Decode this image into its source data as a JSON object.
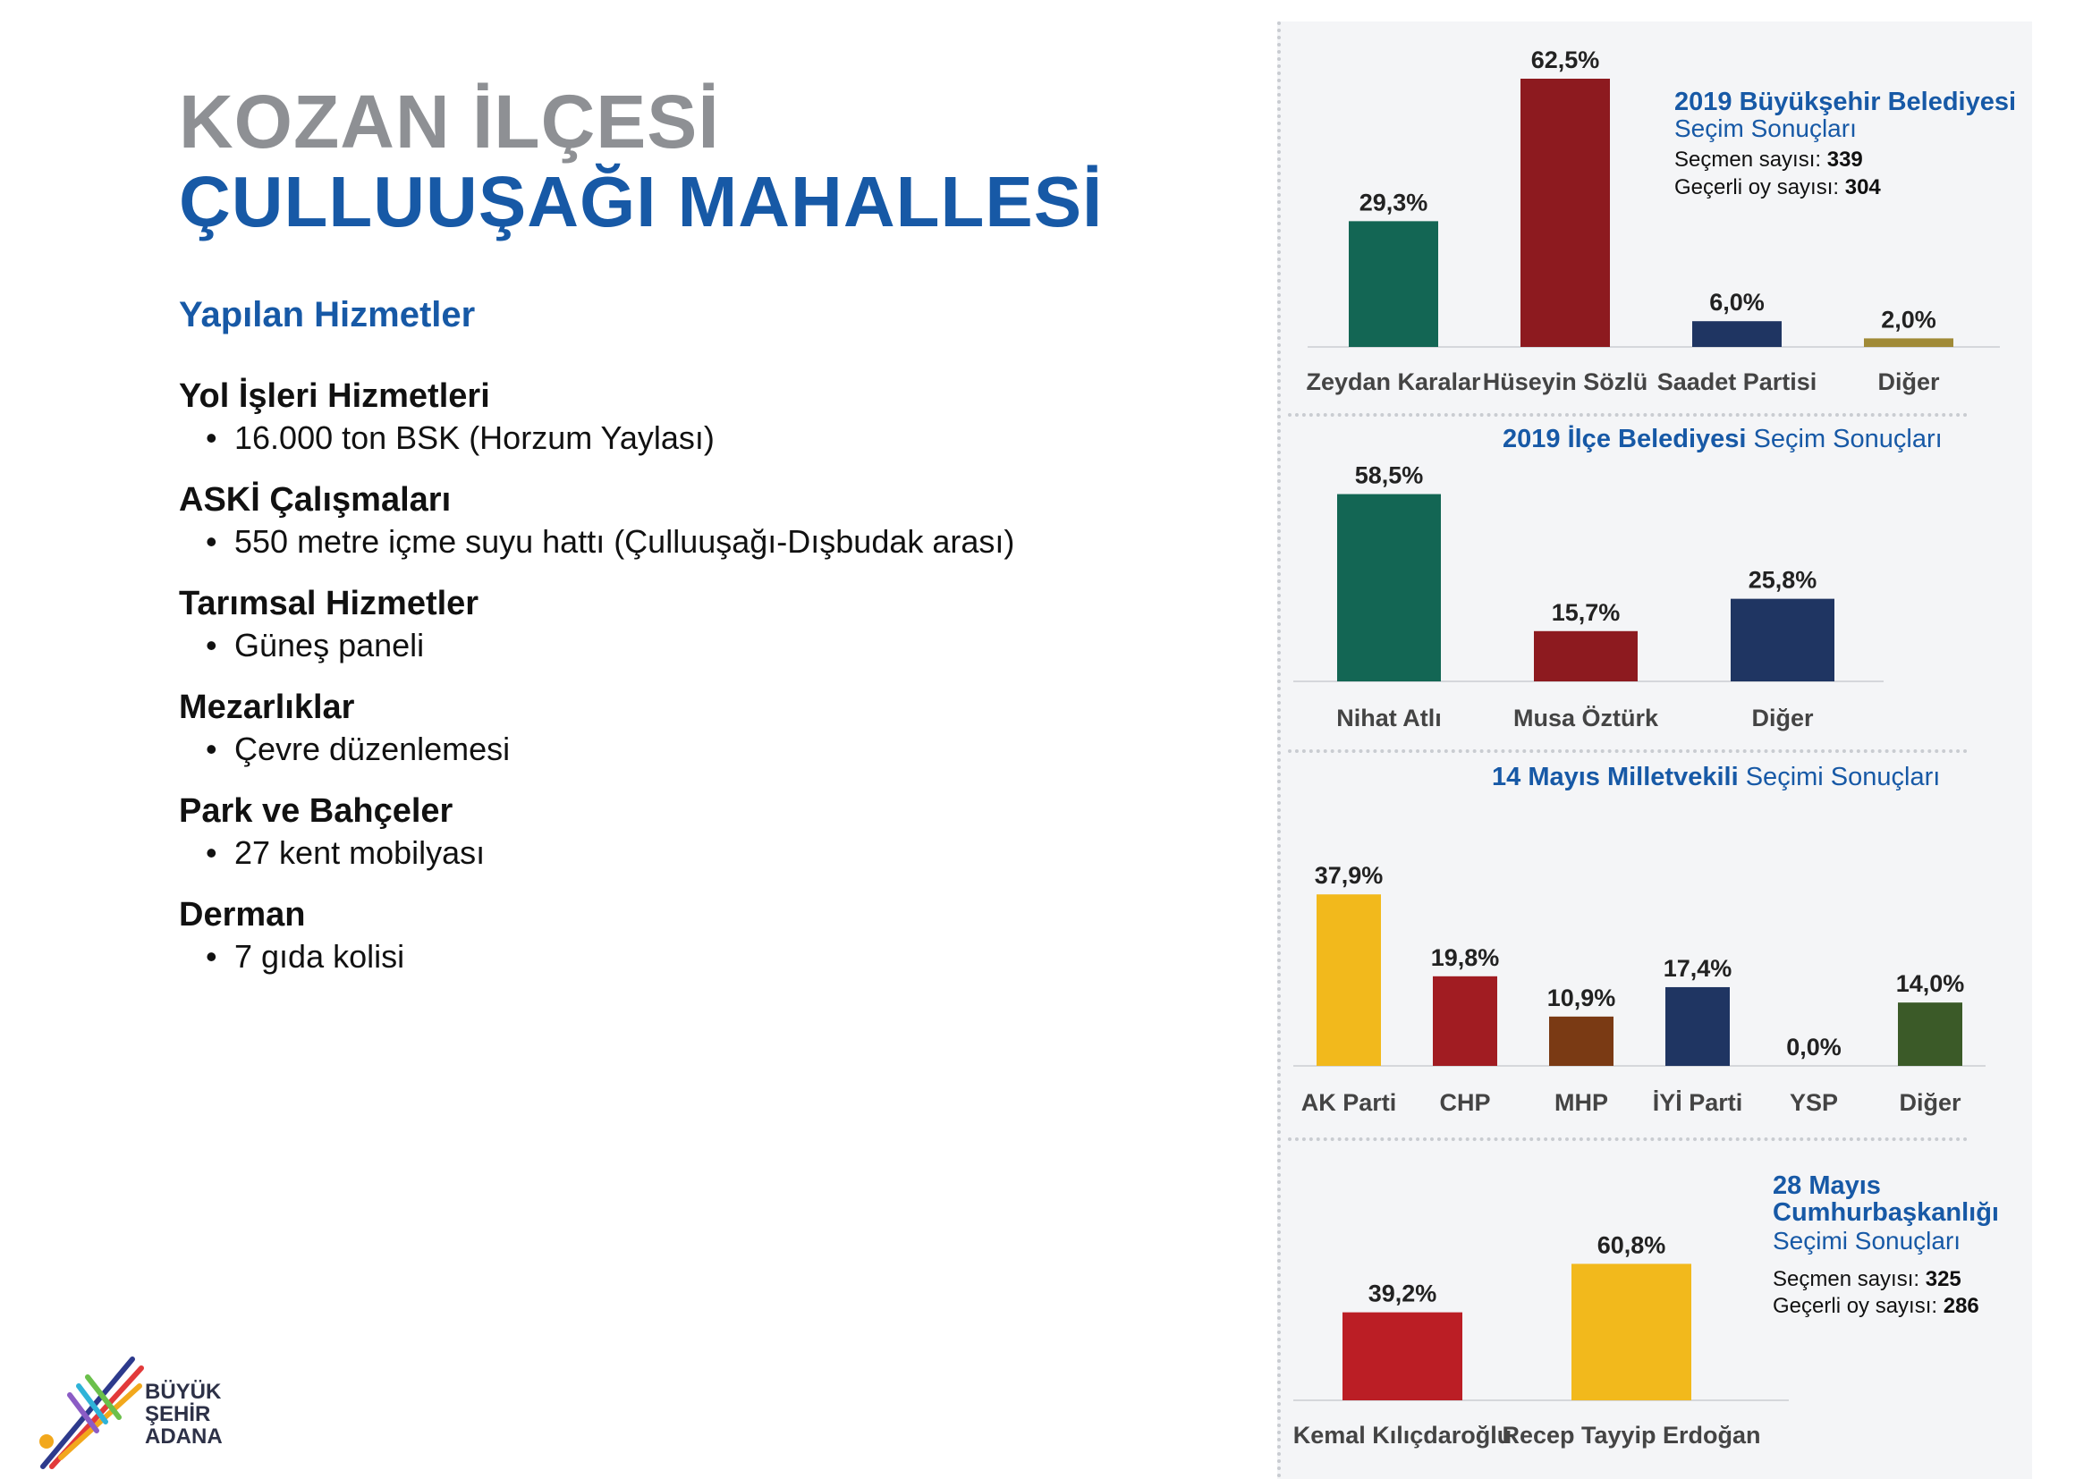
{
  "title": {
    "line1": "KOZAN İLÇESİ",
    "line2": "ÇULLUUŞAĞI MAHALLESİ"
  },
  "services_heading": "Yapılan Hizmetler",
  "services": [
    {
      "title": "Yol İşleri Hizmetleri",
      "items": [
        "16.000 ton BSK (Horzum Yaylası)"
      ]
    },
    {
      "title": "ASKİ Çalışmaları",
      "items": [
        "550 metre içme suyu hattı (Çulluuşağı-Dışbudak arası)"
      ]
    },
    {
      "title": "Tarımsal Hizmetler",
      "items": [
        "Güneş paneli"
      ]
    },
    {
      "title": "Mezarlıklar",
      "items": [
        "Çevre düzenlemesi"
      ]
    },
    {
      "title": "Park ve Bahçeler",
      "items": [
        "27 kent mobilyası"
      ]
    },
    {
      "title": "Derman",
      "items": [
        "7 gıda kolisi"
      ]
    }
  ],
  "charts": {
    "c1": {
      "title_bold": "2019 Büyükşehir Belediyesi",
      "title_sub": "Seçim Sonuçları",
      "voters_label": "Seçmen sayısı:",
      "voters": "339",
      "valid_label": "Geçerli oy sayısı:",
      "valid": "304"
    },
    "c2": {
      "title_bold": "2019 İlçe Belediyesi",
      "title_sub": "Seçim Sonuçları"
    },
    "c3": {
      "title_bold": "14 Mayıs Milletvekili",
      "title_sub": "Seçimi Sonuçları"
    },
    "c4": {
      "title_bold_1": "28 Mayıs",
      "title_bold_2": "Cumhurbaşkanlığı",
      "title_sub": "Seçimi Sonuçları",
      "voters_label": "Seçmen sayısı:",
      "voters": "325",
      "valid_label": "Geçerli oy sayısı:",
      "valid": "286"
    }
  },
  "chart_data": [
    {
      "type": "bar",
      "title": "2019 Büyükşehir Belediyesi Seçim Sonuçları",
      "categories": [
        "Zeydan Karalar",
        "Hüseyin Sözlü",
        "Saadet Partisi",
        "Diğer"
      ],
      "values": [
        29.3,
        62.5,
        6.0,
        2.0
      ],
      "labels": [
        "29,3%",
        "62,5%",
        "6,0%",
        "2,0%"
      ],
      "colors": [
        "#136654",
        "#8d1a1f",
        "#1f3562",
        "#a08a37"
      ]
    },
    {
      "type": "bar",
      "title": "2019 İlçe Belediyesi Seçim Sonuçları",
      "categories": [
        "Nihat Atlı",
        "Musa Öztürk",
        "Diğer"
      ],
      "values": [
        58.5,
        15.7,
        25.8
      ],
      "labels": [
        "58,5%",
        "15,7%",
        "25,8%"
      ],
      "colors": [
        "#136654",
        "#8d1a1f",
        "#1f3562"
      ]
    },
    {
      "type": "bar",
      "title": "14 Mayıs Milletvekili Seçimi Sonuçları",
      "categories": [
        "AK Parti",
        "CHP",
        "MHP",
        "İYİ Parti",
        "YSP",
        "Diğer"
      ],
      "values": [
        37.9,
        19.8,
        10.9,
        17.4,
        0.0,
        14.0
      ],
      "labels": [
        "37,9%",
        "19,8%",
        "10,9%",
        "17,4%",
        "0,0%",
        "14,0%"
      ],
      "colors": [
        "#f2b91c",
        "#a11c22",
        "#7a3a14",
        "#1f3562",
        "#6a2a6a",
        "#3b5a28"
      ]
    },
    {
      "type": "bar",
      "title": "28 Mayıs Cumhurbaşkanlığı Seçimi Sonuçları",
      "categories": [
        "Kemal Kılıçdaroğlu",
        "Recep Tayyip Erdoğan"
      ],
      "values": [
        39.2,
        60.8
      ],
      "labels": [
        "39,2%",
        "60,8%"
      ],
      "colors": [
        "#bb1e25",
        "#f2b91c"
      ]
    }
  ],
  "logo": {
    "line1": "BÜYÜK",
    "line2": "ŞEHİR",
    "line3": "ADANA"
  }
}
